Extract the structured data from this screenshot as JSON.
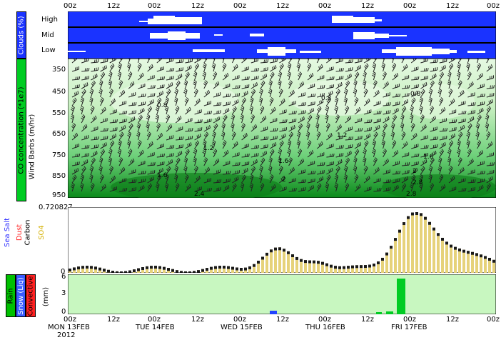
{
  "top_time_labels": [
    "00z",
    "12z",
    "00z",
    "12z",
    "00z",
    "12z",
    "00z",
    "12z",
    "00z",
    "12z",
    "00z"
  ],
  "clouds": {
    "panel_label": "Clouds (%)",
    "rows": [
      "High",
      "Mid",
      "Low"
    ]
  },
  "co_panel": {
    "label_co": "CO concentration (*1e7)",
    "label_wind": "Wind Barbs (m/hr)",
    "pressure_levels": [
      "350",
      "450",
      "550",
      "650",
      "750",
      "850",
      "950"
    ],
    "contour_labels": [
      "0.8",
      "0.8",
      "0.8",
      "1.2",
      "1.2",
      "1.6",
      "1.6",
      "1.6",
      "2",
      "2",
      "2.4",
      "2.8",
      "2.8"
    ]
  },
  "aerosol_panel": {
    "max_label": "0.720827",
    "zero_label": "0",
    "legend": [
      {
        "text": "Sea Salt",
        "color": "#3333ff"
      },
      {
        "text": "Dust",
        "color": "#ff2222"
      },
      {
        "text": "Carbon",
        "color": "#000000"
      },
      {
        "text": "SO4",
        "color": "#d4b000"
      }
    ]
  },
  "precip_panel": {
    "labels": [
      {
        "text": "Rain",
        "bg": "#00c000"
      },
      {
        "text": "Snow (Liq)",
        "bg": "#3a5bff"
      },
      {
        "text": "Convective",
        "bg": "#ff2020"
      }
    ],
    "unit": "(mm)",
    "yticks": [
      "6",
      "3",
      "0"
    ]
  },
  "bottom_axis": {
    "time_labels": [
      "00z",
      "12z",
      "00z",
      "12z",
      "00z",
      "12z",
      "00z",
      "12z",
      "00z",
      "12z",
      "00z"
    ],
    "day_labels": [
      "MON 13FEB",
      "TUE 14FEB",
      "WED 15FEB",
      "THU 16FEB",
      "FRI 17FEB"
    ],
    "year": "2012"
  },
  "colors": {
    "cloud_bg": "#1a33ff",
    "co_light": "#dff7dc",
    "co_dark": "#0a8a1a",
    "precip_bg": "#c8f7c0",
    "precip_rain": "#00cc22",
    "precip_snow": "#2244ff",
    "aerosol_so4": "#e6d27a",
    "aerosol_carbon": "#1a1a1a"
  }
}
